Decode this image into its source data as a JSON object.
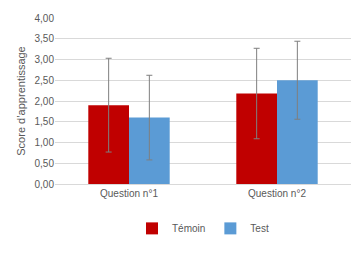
{
  "chart_data": {
    "type": "bar",
    "y_label": "Score d’apprentissage",
    "categories": [
      "Question n°1",
      "Question n°2"
    ],
    "series": [
      {
        "name": "Témoin",
        "color": "#c00000",
        "values": [
          1.9,
          2.18
        ],
        "errors": [
          1.13,
          1.09
        ]
      },
      {
        "name": "Test",
        "color": "#5b9bd5",
        "values": [
          1.6,
          2.5
        ],
        "errors": [
          1.02,
          0.94
        ]
      }
    ],
    "ylim": [
      0,
      4
    ],
    "yticks": [
      {
        "value": 0,
        "label": "0,00"
      },
      {
        "value": 0.5,
        "label": "0,50"
      },
      {
        "value": 1,
        "label": "1,00"
      },
      {
        "value": 1.5,
        "label": "1,50"
      },
      {
        "value": 2,
        "label": "2,00"
      },
      {
        "value": 2.5,
        "label": "2,50"
      },
      {
        "value": 3,
        "label": "3,00"
      },
      {
        "value": 3.5,
        "label": "3,50"
      },
      {
        "value": 4,
        "label": "4,00"
      }
    ],
    "grid": true,
    "legend": "bottom"
  }
}
